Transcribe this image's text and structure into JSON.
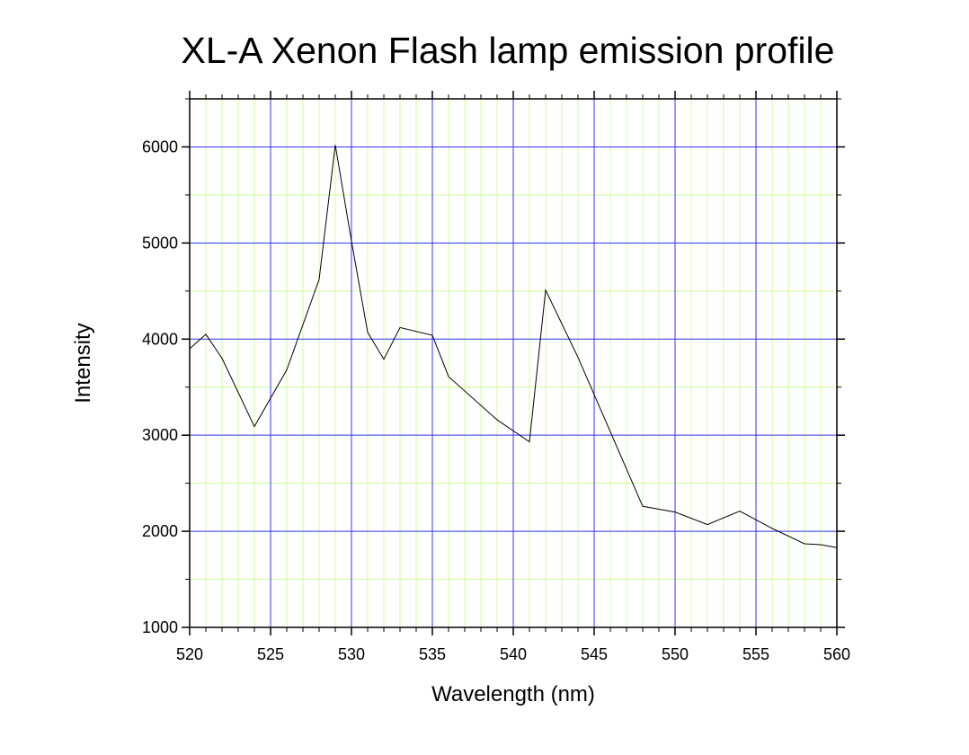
{
  "chart_data": {
    "type": "line",
    "title": "XL-A Xenon Flash lamp emission profile",
    "x_label": "Wavelength (nm)",
    "y_label": "Intensity",
    "x": [
      520,
      521,
      522,
      524,
      526,
      528,
      529,
      530,
      531,
      532,
      533,
      535,
      536,
      539,
      541,
      542,
      544,
      548,
      550,
      552,
      554,
      556,
      558,
      559,
      560
    ],
    "series": [
      {
        "color": "#000000",
        "values": [
          3900,
          4050,
          3800,
          3090,
          3680,
          4620,
          6020,
          5020,
          4070,
          3790,
          4120,
          4040,
          3610,
          3160,
          2930,
          4510,
          3810,
          2260,
          2200,
          2070,
          2210,
          2030,
          1870,
          1860,
          1830
        ]
      }
    ],
    "xlim": [
      520,
      560
    ],
    "ylim": [
      1000,
      6500
    ],
    "xticks": [
      520,
      525,
      530,
      535,
      540,
      545,
      550,
      555,
      560
    ],
    "yticks": [
      1000,
      2000,
      3000,
      4000,
      5000,
      6000
    ],
    "grid": true,
    "grid_color": "#3333ff",
    "minor_grid": {
      "x": 1,
      "y": 500
    },
    "minor_grid_color": "#ccff99"
  }
}
